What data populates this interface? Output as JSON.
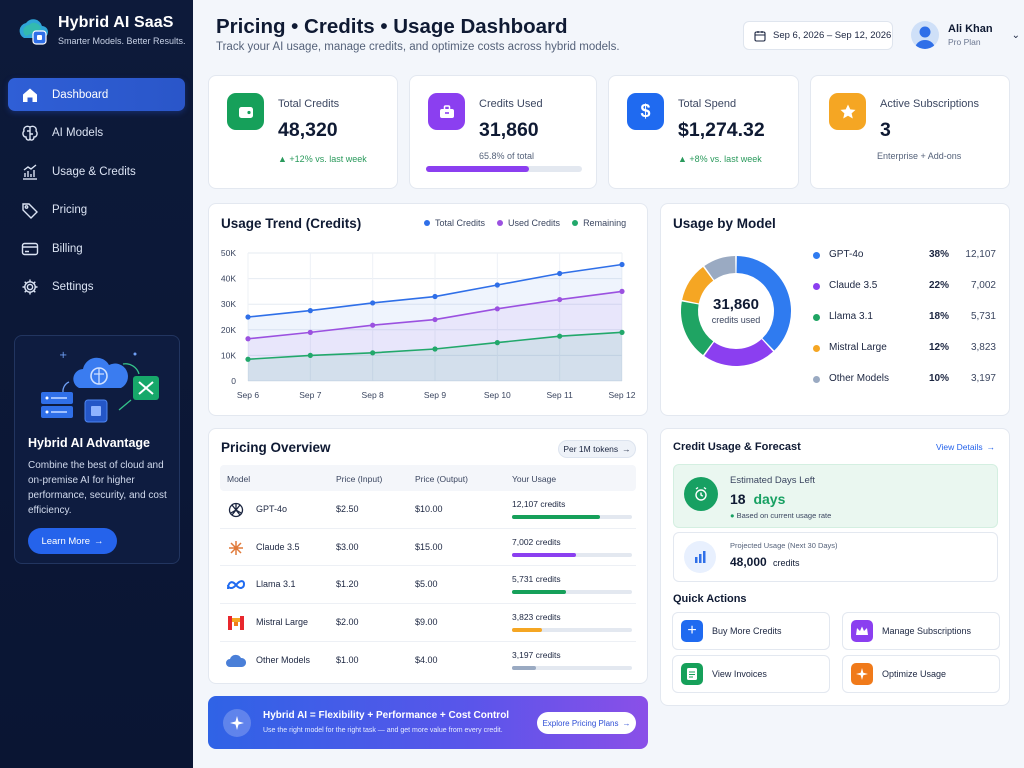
{
  "brand": {
    "title": "Hybrid AI SaaS",
    "tagline": "Smarter Models. Better Results."
  },
  "nav": [
    {
      "label": "Dashboard",
      "icon": "home-icon",
      "active": true
    },
    {
      "label": "AI Models",
      "icon": "brain-icon"
    },
    {
      "label": "Usage & Credits",
      "icon": "chart-icon"
    },
    {
      "label": "Pricing",
      "icon": "tag-icon"
    },
    {
      "label": "Billing",
      "icon": "card-icon"
    },
    {
      "label": "Settings",
      "icon": "gear-icon"
    }
  ],
  "promo": {
    "title": "Hybrid AI Advantage",
    "text": "Combine the best of cloud and on-premise AI for higher performance, security, and cost efficiency.",
    "button": "Learn More"
  },
  "header": {
    "title": "Pricing • Credits • Usage Dashboard",
    "subtitle": "Track your AI usage, manage credits, and optimize costs across hybrid models.",
    "date_range": "Sep 6, 2026 – Sep 12, 2026",
    "user_name": "Ali Khan",
    "user_plan": "Pro Plan"
  },
  "stats": [
    {
      "label": "Total Credits",
      "value": "48,320",
      "note": "+12% vs. last week",
      "color": "#16a05a",
      "icon": "wallet-icon"
    },
    {
      "label": "Credits Used",
      "value": "31,860",
      "note": "65.8% of total",
      "progress": 65.8,
      "color": "#8b3ff0",
      "icon": "briefcase-icon"
    },
    {
      "label": "Total Spend",
      "value": "$1,274.32",
      "note": "+8% vs. last week",
      "color": "#1f6af0",
      "icon": "dollar-icon"
    },
    {
      "label": "Active Subscriptions",
      "value": "3",
      "note": "Enterprise + Add-ons",
      "color": "#f5a623",
      "icon": "star-icon"
    }
  ],
  "trend": {
    "title": "Usage Trend (Credits)",
    "legend": [
      {
        "name": "Total Credits",
        "color": "#2f6fe8"
      },
      {
        "name": "Used Credits",
        "color": "#9b51e0"
      },
      {
        "name": "Remaining",
        "color": "#22a86b"
      }
    ]
  },
  "chart_data": {
    "type": "line",
    "x": [
      "Sep 6",
      "Sep 7",
      "Sep 8",
      "Sep 9",
      "Sep 10",
      "Sep 11",
      "Sep 12"
    ],
    "yticks": [
      "0",
      "10K",
      "20K",
      "30K",
      "40K",
      "50K"
    ],
    "ylim": [
      0,
      50000
    ],
    "series": [
      {
        "name": "Total Credits",
        "values": [
          25000,
          27500,
          30500,
          33000,
          37500,
          42000,
          45500
        ]
      },
      {
        "name": "Used Credits",
        "values": [
          16500,
          19000,
          21800,
          24000,
          28200,
          31800,
          35000
        ]
      },
      {
        "name": "Remaining",
        "values": [
          8500,
          10000,
          11000,
          12500,
          15000,
          17500,
          19000
        ]
      }
    ]
  },
  "model_usage": {
    "title": "Usage by Model",
    "center_value": "31,860",
    "center_label": "credits used",
    "models": [
      {
        "name": "GPT-4o",
        "pct": "38%",
        "credits": "12,107",
        "color": "#2f7bf0",
        "value": 38
      },
      {
        "name": "Claude 3.5",
        "pct": "22%",
        "credits": "7,002",
        "color": "#8b3ff0",
        "value": 22
      },
      {
        "name": "Llama 3.1",
        "pct": "18%",
        "credits": "5,731",
        "color": "#1fa463",
        "value": 18
      },
      {
        "name": "Mistral Large",
        "pct": "12%",
        "credits": "3,823",
        "color": "#f5a623",
        "value": 12
      },
      {
        "name": "Other Models",
        "pct": "10%",
        "credits": "3,197",
        "color": "#9aaac2",
        "value": 10
      }
    ]
  },
  "pricing": {
    "title": "Pricing Overview",
    "per_tokens": "Per 1M tokens",
    "headers": [
      "Model",
      "Price (Input)",
      "Price (Output)",
      "Your Usage"
    ],
    "rows": [
      {
        "model": "GPT-4o",
        "input": "$2.50",
        "output": "$10.00",
        "usage": "12,107 credits",
        "fill": 0.73,
        "color": "#16a05a",
        "icon": "openai-icon"
      },
      {
        "model": "Claude 3.5",
        "input": "$3.00",
        "output": "$15.00",
        "usage": "7,002 credits",
        "fill": 0.53,
        "color": "#8b3ff0",
        "icon": "claude-icon"
      },
      {
        "model": "Llama 3.1",
        "input": "$1.20",
        "output": "$5.00",
        "usage": "5,731 credits",
        "fill": 0.45,
        "color": "#16a05a",
        "icon": "meta-icon"
      },
      {
        "model": "Mistral Large",
        "input": "$2.00",
        "output": "$9.00",
        "usage": "3,823 credits",
        "fill": 0.25,
        "color": "#f5a623",
        "icon": "mistral-icon"
      },
      {
        "model": "Other Models",
        "input": "$1.00",
        "output": "$4.00",
        "usage": "3,197 credits",
        "fill": 0.2,
        "color": "#9aaac2",
        "icon": "cloud-icon"
      }
    ]
  },
  "forecast": {
    "title": "Credit Usage & Forecast",
    "view_details": "View Details",
    "days_label": "Estimated Days Left",
    "days_value": "18",
    "days_unit": "days",
    "days_note": "Based on current usage rate",
    "projected_label": "Projected Usage (Next 30 Days)",
    "projected_value": "48,000",
    "projected_unit": "credits"
  },
  "quick_actions": {
    "title": "Quick Actions",
    "items": [
      {
        "label": "Buy More Credits",
        "color": "#1f6af0",
        "icon": "plus-icon"
      },
      {
        "label": "Manage Subscriptions",
        "color": "#8b3ff0",
        "icon": "crown-icon"
      },
      {
        "label": "View Invoices",
        "color": "#16a05a",
        "icon": "invoice-icon"
      },
      {
        "label": "Optimize Usage",
        "color": "#f07a1a",
        "icon": "sparkle-icon"
      }
    ]
  },
  "banner": {
    "title": "Hybrid AI = Flexibility + Performance + Cost Control",
    "text": "Use the right model for the right task — and get more value from every credit.",
    "button": "Explore Pricing Plans"
  }
}
